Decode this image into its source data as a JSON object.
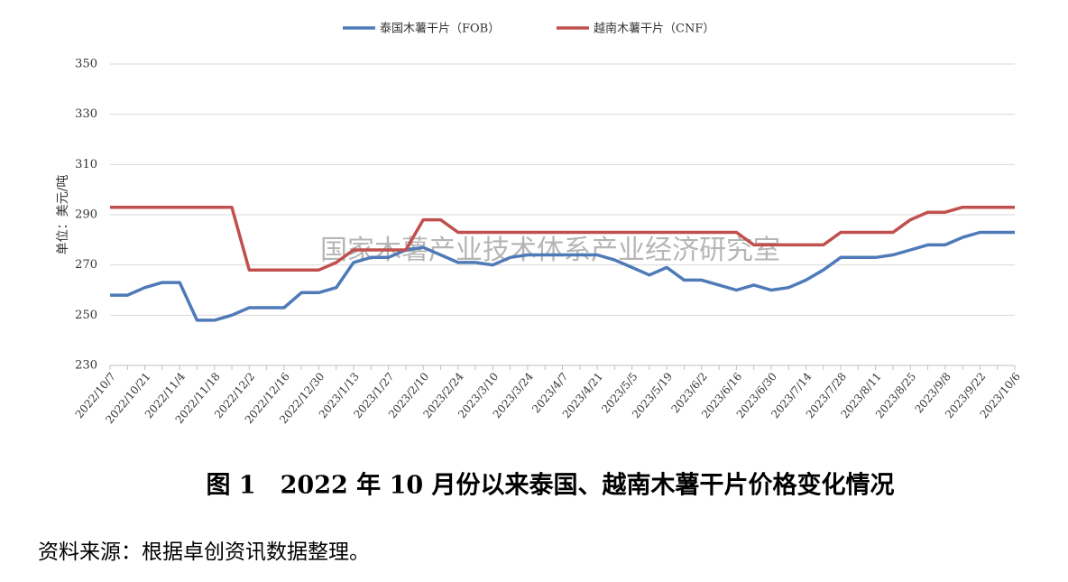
{
  "chart_data": {
    "type": "line",
    "title": "图 1　2022 年 10 月份以来泰国、越南木薯干片价格变化情况",
    "source": "资料来源：根据卓创资讯数据整理。",
    "watermark": "国家木薯产业技术体系产业经济研究室",
    "y_label": "单位：美元/吨",
    "categories": [
      "2022/10/7",
      null,
      "2022/10/21",
      null,
      "2022/11/4",
      null,
      "2022/11/18",
      null,
      "2022/12/2",
      null,
      "2022/12/16",
      null,
      "2022/12/30",
      null,
      "2023/1/13",
      null,
      "2023/1/27",
      null,
      "2023/2/10",
      null,
      "2023/2/24",
      null,
      "2023/3/10",
      null,
      "2023/3/24",
      null,
      "2023/4/7",
      null,
      "2023/4/21",
      null,
      "2023/5/5",
      null,
      "2023/5/19",
      null,
      "2023/6/2",
      null,
      "2023/6/16",
      null,
      "2023/6/30",
      null,
      "2023/7/14",
      null,
      "2023/7/28",
      null,
      "2023/8/11",
      null,
      "2023/8/25",
      null,
      "2023/9/8",
      null,
      "2023/9/22",
      null,
      "2023/10/6"
    ],
    "series": [
      {
        "name": "泰国木薯干片（FOB）",
        "color": "#4f7ab8",
        "values": [
          258,
          258,
          261,
          263,
          263,
          248,
          248,
          250,
          253,
          253,
          253,
          259,
          259,
          261,
          271,
          273,
          273,
          276,
          277,
          274,
          271,
          271,
          270,
          273,
          274,
          274,
          274,
          274,
          274,
          272,
          269,
          266,
          269,
          264,
          264,
          262,
          260,
          262,
          260,
          261,
          264,
          268,
          273,
          273,
          273,
          274,
          276,
          278,
          278,
          281,
          283,
          283,
          283
        ]
      },
      {
        "name": "越南木薯干片（CNF）",
        "color": "#c0504d",
        "values": [
          293,
          293,
          293,
          293,
          293,
          293,
          293,
          293,
          268,
          268,
          268,
          268,
          268,
          271,
          276,
          276,
          276,
          276,
          288,
          288,
          283,
          283,
          283,
          283,
          283,
          283,
          283,
          283,
          283,
          283,
          283,
          283,
          283,
          283,
          283,
          283,
          283,
          278,
          278,
          278,
          278,
          278,
          283,
          283,
          283,
          283,
          288,
          291,
          291,
          293,
          293,
          293,
          293
        ]
      }
    ],
    "ylim": [
      230,
      350
    ],
    "yticks": [
      230,
      250,
      270,
      290,
      310,
      330,
      350
    ],
    "grid": true
  }
}
